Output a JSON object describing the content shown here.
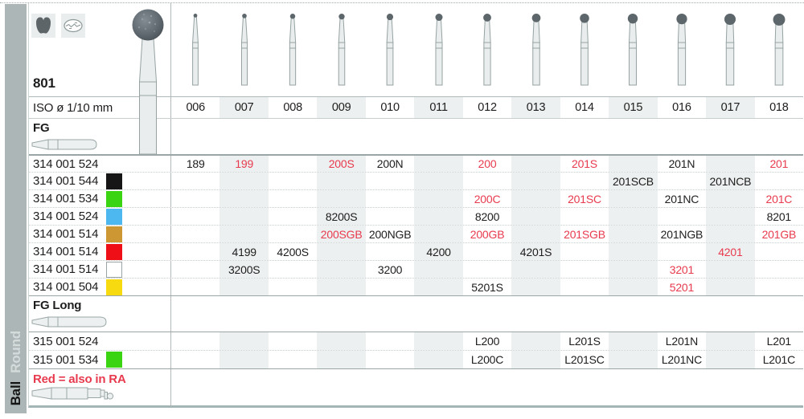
{
  "product": {
    "number": "801"
  },
  "table": {
    "iso_label": "ISO ø 1/10 mm",
    "sizes": [
      "006",
      "007",
      "008",
      "009",
      "010",
      "011",
      "012",
      "013",
      "014",
      "015",
      "016",
      "017",
      "018"
    ]
  },
  "sidebar": {
    "shape_label": "Round",
    "group_label": "Ball"
  },
  "note": "Red = also in RA",
  "icons": [
    "molar-icon",
    "occlusal-surface-icon",
    "fg-shank-icon",
    "fg-long-shank-icon",
    "ra-shank-icon",
    "ball-bur-icon"
  ],
  "colors": {
    "red_text": "#e83a4e",
    "text": "#1d1d1d",
    "column_shade": "#edf0f0",
    "sidebar": "#adb6b6",
    "chip_colors": {
      "black": "#161616",
      "green": "#3ad413",
      "blue": "#4db7ef",
      "orange": "#cd9834",
      "red": "#ee1016",
      "white": "#ffffff",
      "yellow": "#f8da10"
    }
  },
  "sections": [
    {
      "label": "FG",
      "rows": [
        {
          "code": "314 001 524",
          "chip": null,
          "cells": {
            "006": {
              "v": "189"
            },
            "007": {
              "v": "199",
              "red": true
            },
            "009": {
              "v": "200S",
              "red": true
            },
            "010": {
              "v": "200N"
            },
            "012": {
              "v": "200",
              "red": true
            },
            "014": {
              "v": "201S",
              "red": true
            },
            "016": {
              "v": "201N"
            },
            "018": {
              "v": "201",
              "red": true
            }
          }
        },
        {
          "code": "314 001 544",
          "chip": "black",
          "cells": {
            "015": {
              "v": "201SCB"
            },
            "017": {
              "v": "201NCB"
            }
          }
        },
        {
          "code": "314 001 534",
          "chip": "green",
          "cells": {
            "012": {
              "v": "200C",
              "red": true
            },
            "014": {
              "v": "201SC",
              "red": true
            },
            "016": {
              "v": "201NC"
            },
            "018": {
              "v": "201C",
              "red": true
            }
          }
        },
        {
          "code": "314 001 524",
          "chip": "blue",
          "cells": {
            "009": {
              "v": "8200S"
            },
            "012": {
              "v": "8200"
            },
            "018": {
              "v": "8201"
            }
          }
        },
        {
          "code": "314 001 514",
          "chip": "orange",
          "cells": {
            "009": {
              "v": "200SGB",
              "red": true
            },
            "010": {
              "v": "200NGB"
            },
            "012": {
              "v": "200GB",
              "red": true
            },
            "014": {
              "v": "201SGB",
              "red": true
            },
            "016": {
              "v": "201NGB"
            },
            "018": {
              "v": "201GB",
              "red": true
            }
          }
        },
        {
          "code": "314 001 514",
          "chip": "red",
          "cells": {
            "007": {
              "v": "4199"
            },
            "008": {
              "v": "4200S"
            },
            "011": {
              "v": "4200"
            },
            "013": {
              "v": "4201S"
            },
            "017": {
              "v": "4201",
              "red": true
            }
          }
        },
        {
          "code": "314 001 514",
          "chip": "white",
          "cells": {
            "007": {
              "v": "3200S"
            },
            "010": {
              "v": "3200"
            },
            "016": {
              "v": "3201",
              "red": true
            }
          }
        },
        {
          "code": "314 001 504",
          "chip": "yellow",
          "cells": {
            "012": {
              "v": "5201S"
            },
            "016": {
              "v": "5201",
              "red": true
            }
          }
        }
      ]
    },
    {
      "label": "FG Long",
      "rows": [
        {
          "code": "315 001 524",
          "chip": null,
          "cells": {
            "012": {
              "v": "L200"
            },
            "014": {
              "v": "L201S"
            },
            "016": {
              "v": "L201N"
            },
            "018": {
              "v": "L201"
            }
          }
        },
        {
          "code": "315 001 534",
          "chip": "green",
          "cells": {
            "012": {
              "v": "L200C"
            },
            "014": {
              "v": "L201SC"
            },
            "016": {
              "v": "L201NC"
            },
            "018": {
              "v": "L201C"
            }
          }
        }
      ]
    }
  ]
}
